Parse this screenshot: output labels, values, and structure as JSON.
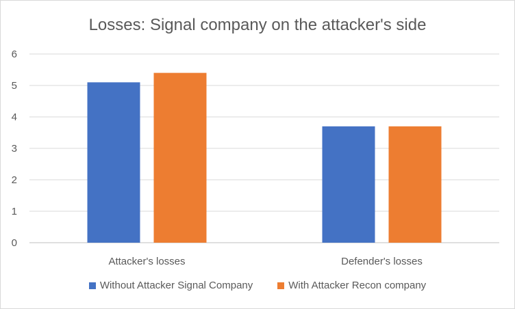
{
  "chart_data": {
    "type": "bar",
    "title": "Losses: Signal company on the attacker's side",
    "categories": [
      "Attacker's losses",
      "Defender's losses"
    ],
    "series": [
      {
        "name": "Without Attacker Signal Company",
        "values": [
          5.1,
          3.7
        ],
        "color": "#4472c4"
      },
      {
        "name": "With Attacker Recon company",
        "values": [
          5.4,
          3.7
        ],
        "color": "#ed7d31"
      }
    ],
    "ylim": [
      0,
      6
    ],
    "yticks": [
      "0",
      "1",
      "2",
      "3",
      "4",
      "5",
      "6"
    ],
    "grid": true,
    "legend_position": "bottom"
  }
}
